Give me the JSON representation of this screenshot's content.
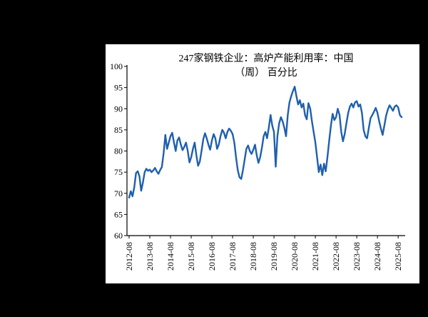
{
  "window": {
    "background_color": "#000000",
    "panel_color": "#ffffff"
  },
  "chart_data": {
    "type": "line",
    "title_lines": [
      "247家钢铁企业：高炉产能利用率：中国",
      "（周） 百分比"
    ],
    "title": "247家钢铁企业：高炉产能利用率：中国（周）百分比",
    "unit": "百分比",
    "frequency": "周",
    "line_color": "#1f5fae",
    "text_color": "#000000",
    "grid": "off",
    "legend": "none",
    "ylim": [
      60,
      100
    ],
    "y_ticks": [
      60,
      65,
      70,
      75,
      80,
      85,
      90,
      95,
      100
    ],
    "x_tick_labels": [
      "2012-08",
      "2013-08",
      "2014-08",
      "2015-08",
      "2016-08",
      "2017-08",
      "2018-08",
      "2019-08",
      "2020-08",
      "2021-08",
      "2022-08",
      "2023-08",
      "2024-08",
      "2025-08"
    ],
    "points_per_year": 12,
    "values": [
      69.0,
      70.5,
      69.3,
      71.5,
      74.8,
      75.2,
      74.0,
      70.6,
      72.5,
      75.0,
      75.8,
      75.3,
      75.6,
      75.0,
      75.4,
      76.0,
      75.2,
      74.6,
      75.5,
      76.2,
      79.5,
      83.8,
      80.5,
      82.0,
      83.5,
      84.3,
      82.0,
      80.0,
      82.5,
      83.2,
      81.5,
      80.2,
      81.0,
      82.0,
      80.0,
      77.3,
      78.5,
      80.5,
      82.0,
      79.0,
      76.5,
      77.5,
      80.0,
      82.8,
      84.2,
      83.0,
      81.5,
      80.3,
      82.5,
      84.0,
      83.0,
      80.5,
      81.5,
      83.5,
      85.0,
      84.3,
      83.0,
      84.5,
      85.3,
      84.8,
      84.0,
      82.0,
      78.5,
      75.5,
      73.8,
      73.4,
      75.5,
      78.0,
      80.5,
      81.3,
      80.0,
      79.3,
      80.3,
      81.5,
      79.0,
      77.2,
      78.5,
      80.8,
      83.5,
      84.5,
      83.0,
      85.5,
      88.5,
      86.0,
      84.5,
      76.3,
      83.5,
      86.5,
      88.0,
      87.0,
      85.5,
      83.5,
      88.5,
      91.5,
      93.0,
      94.2,
      95.2,
      93.0,
      91.0,
      92.0,
      90.3,
      91.2,
      88.5,
      87.5,
      91.3,
      90.0,
      87.0,
      84.5,
      82.0,
      78.5,
      75.0,
      76.8,
      74.3,
      77.0,
      75.2,
      78.5,
      82.5,
      86.0,
      88.8,
      87.3,
      88.0,
      90.0,
      88.5,
      84.5,
      82.3,
      84.0,
      86.5,
      89.0,
      90.5,
      91.2,
      90.3,
      91.5,
      91.8,
      90.5,
      91.0,
      89.0,
      85.0,
      83.5,
      83.0,
      85.5,
      87.8,
      88.5,
      89.3,
      90.2,
      89.0,
      87.0,
      85.3,
      83.8,
      86.0,
      88.3,
      89.8,
      90.8,
      90.2,
      89.5,
      90.5,
      90.8,
      90.3,
      88.5,
      88.0
    ]
  }
}
